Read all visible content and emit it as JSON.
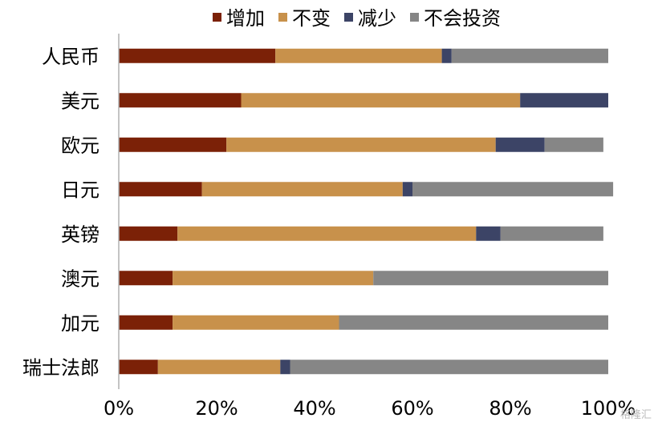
{
  "chart_data": {
    "type": "bar",
    "orientation": "horizontal",
    "stacked": true,
    "categories": [
      "人民币",
      "美元",
      "欧元",
      "日元",
      "英镑",
      "澳元",
      "加元",
      "瑞士法郎"
    ],
    "series": [
      {
        "name": "增加",
        "color": "#7B2107",
        "values": [
          32,
          25,
          22,
          17,
          12,
          11,
          11,
          8
        ]
      },
      {
        "name": "不变",
        "color": "#C8914B",
        "values": [
          34,
          57,
          55,
          41,
          61,
          41,
          34,
          25
        ]
      },
      {
        "name": "减少",
        "color": "#3C4466",
        "values": [
          2,
          18,
          10,
          2,
          5,
          0,
          0,
          2
        ]
      },
      {
        "name": "不会投资",
        "color": "#868686",
        "values": [
          32,
          0,
          12,
          41,
          21,
          48,
          55,
          65
        ]
      }
    ],
    "x_ticks": [
      "0%",
      "20%",
      "40%",
      "60%",
      "80%",
      "100%"
    ],
    "xlim": [
      0,
      100
    ],
    "legend_position": "top",
    "grid": false
  },
  "watermark": "格隆汇"
}
